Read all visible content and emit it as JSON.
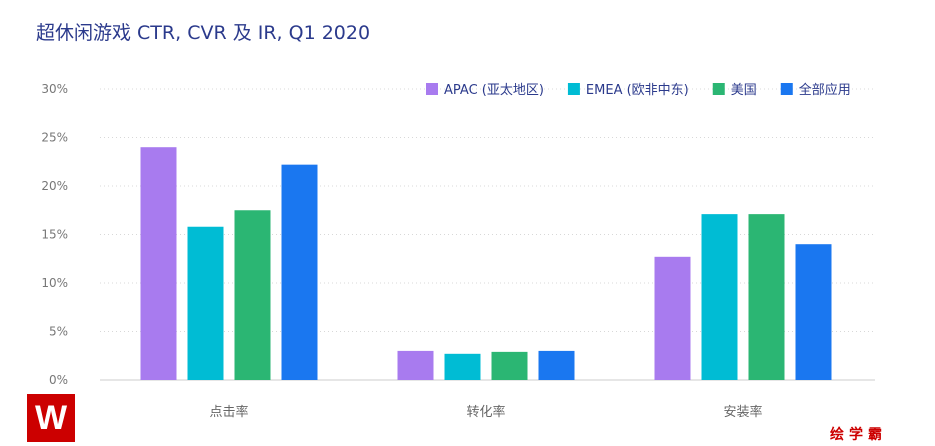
{
  "chart_data": {
    "type": "bar",
    "title": "超休闲游戏 CTR, CVR 及 IR, Q1 2020",
    "categories": [
      "点击率",
      "转化率",
      "安装率"
    ],
    "series": [
      {
        "name": "APAC (亚太地区)",
        "color": "#a87bef",
        "values": [
          24.0,
          3.0,
          12.7
        ]
      },
      {
        "name": "EMEA (欧非中东)",
        "color": "#00bcd4",
        "values": [
          15.8,
          2.7,
          17.1
        ]
      },
      {
        "name": "美国",
        "color": "#2bb673",
        "values": [
          17.5,
          2.9,
          17.1
        ]
      },
      {
        "name": "全部应用",
        "color": "#1a77f0",
        "values": [
          22.2,
          3.0,
          14.0
        ]
      }
    ],
    "yticks": [
      "0%",
      "5%",
      "10%",
      "15%",
      "20%",
      "25%",
      "30%"
    ],
    "ylim": [
      0,
      30
    ],
    "xlabel": "",
    "ylabel": "",
    "grid": true,
    "legend": "top-right"
  },
  "watermark": {
    "logo": "W",
    "text": "绘学霸"
  }
}
